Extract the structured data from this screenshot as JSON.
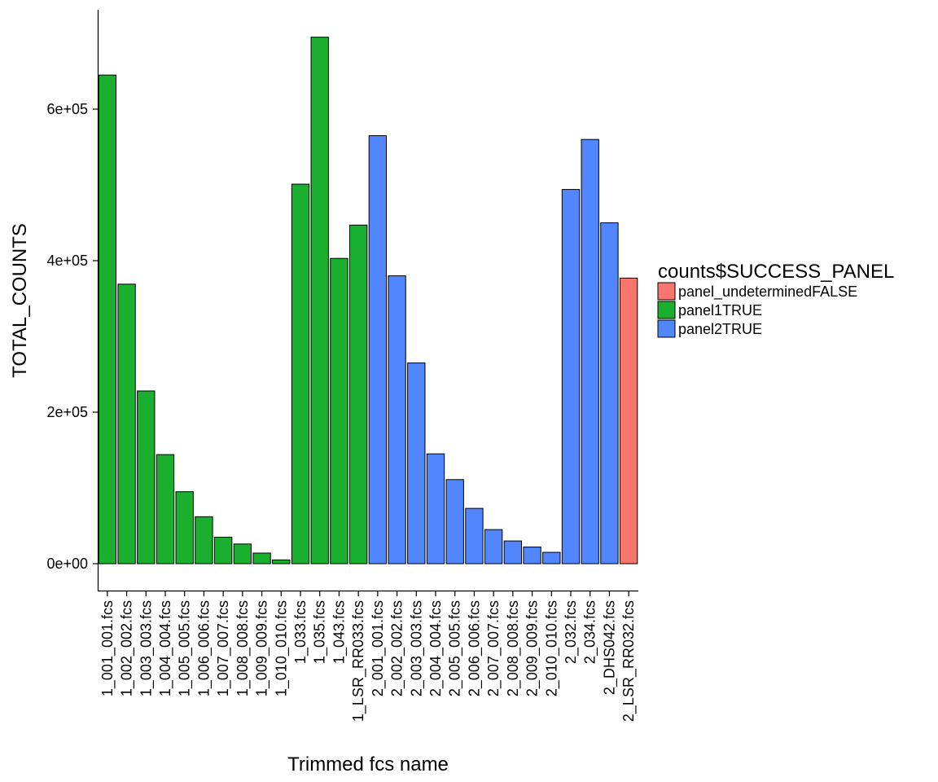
{
  "chart_data": {
    "type": "bar",
    "xlabel": "Trimmed fcs name",
    "ylabel": "TOTAL_COUNTS",
    "ylim": [
      -35000,
      730000
    ],
    "yticks": [
      0,
      200000,
      400000,
      600000
    ],
    "ytick_labels": [
      "0e+00",
      "2e+05",
      "4e+05",
      "6e+05"
    ],
    "grid": false,
    "legend": {
      "title": "counts$SUCCESS_PANEL",
      "placement": "right",
      "entries": [
        {
          "label": "panel_undeterminedFALSE",
          "color": "#F8766D"
        },
        {
          "label": "panel1TRUE",
          "color": "#1AAF2E"
        },
        {
          "label": "panel2TRUE",
          "color": "#5286FF"
        }
      ]
    },
    "categories": [
      "1_001_001.fcs",
      "1_002_002.fcs",
      "1_003_003.fcs",
      "1_004_004.fcs",
      "1_005_005.fcs",
      "1_006_006.fcs",
      "1_007_007.fcs",
      "1_008_008.fcs",
      "1_009_009.fcs",
      "1_010_010.fcs",
      "1_033.fcs",
      "1_035.fcs",
      "1_043.fcs",
      "1_LSR_RR033.fcs",
      "2_001_001.fcs",
      "2_002_002.fcs",
      "2_003_003.fcs",
      "2_004_004.fcs",
      "2_005_005.fcs",
      "2_006_006.fcs",
      "2_007_007.fcs",
      "2_008_008.fcs",
      "2_009_009.fcs",
      "2_010_010.fcs",
      "2_032.fcs",
      "2_034.fcs",
      "2_DHS042.fcs",
      "2_LSR_RR032.fcs"
    ],
    "values": [
      645000,
      369000,
      228000,
      144000,
      95000,
      62000,
      35000,
      26000,
      14000,
      5000,
      501000,
      695000,
      403000,
      447000,
      565000,
      380000,
      265000,
      145000,
      111000,
      73000,
      45000,
      30000,
      22000,
      15000,
      494000,
      560000,
      450000,
      377000
    ],
    "groups": [
      "panel1TRUE",
      "panel1TRUE",
      "panel1TRUE",
      "panel1TRUE",
      "panel1TRUE",
      "panel1TRUE",
      "panel1TRUE",
      "panel1TRUE",
      "panel1TRUE",
      "panel1TRUE",
      "panel1TRUE",
      "panel1TRUE",
      "panel1TRUE",
      "panel1TRUE",
      "panel2TRUE",
      "panel2TRUE",
      "panel2TRUE",
      "panel2TRUE",
      "panel2TRUE",
      "panel2TRUE",
      "panel2TRUE",
      "panel2TRUE",
      "panel2TRUE",
      "panel2TRUE",
      "panel2TRUE",
      "panel2TRUE",
      "panel2TRUE",
      "panel_undeterminedFALSE"
    ]
  }
}
